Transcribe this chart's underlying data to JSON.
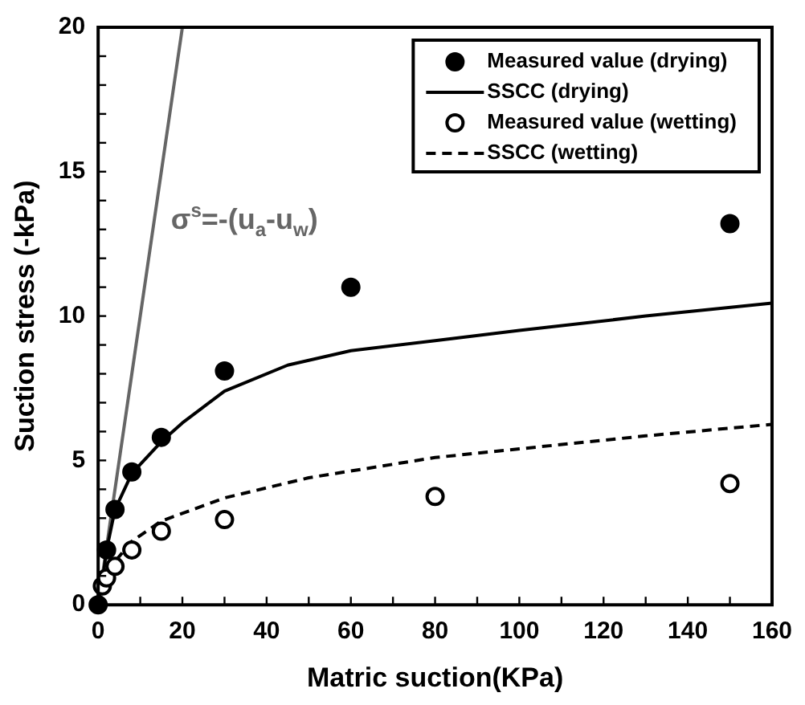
{
  "chart_data": {
    "type": "scatter",
    "xlabel": "Matric suction(KPa)",
    "ylabel": "Suction stress (-kPa)",
    "xlim": [
      0,
      160
    ],
    "ylim": [
      0,
      20
    ],
    "xticks": [
      0,
      {
        "value": 10,
        "label": null
      },
      20,
      {
        "value": 30,
        "label": null
      },
      40,
      {
        "value": 50,
        "label": null
      },
      60,
      {
        "value": 70,
        "label": null
      },
      80,
      {
        "value": 90,
        "label": null
      },
      100,
      {
        "value": 110,
        "label": null
      },
      120,
      {
        "value": 130,
        "label": null
      },
      140,
      {
        "value": 150,
        "label": null
      },
      160
    ],
    "yticks": [
      0,
      {
        "value": 1,
        "label": null
      },
      {
        "value": 2,
        "label": null
      },
      {
        "value": 3,
        "label": null
      },
      {
        "value": 4,
        "label": null
      },
      5,
      {
        "value": 6,
        "label": null
      },
      {
        "value": 7,
        "label": null
      },
      {
        "value": 8,
        "label": null
      },
      {
        "value": 9,
        "label": null
      },
      10,
      {
        "value": 11,
        "label": null
      },
      {
        "value": 12,
        "label": null
      },
      {
        "value": 13,
        "label": null
      },
      {
        "value": 14,
        "label": null
      },
      15,
      {
        "value": 16,
        "label": null
      },
      {
        "value": 17,
        "label": null
      },
      {
        "value": 18,
        "label": null
      },
      {
        "value": 19,
        "label": null
      },
      20
    ],
    "grid": false,
    "legend": "top right",
    "series": [
      {
        "name": "Measured value (drying)",
        "type": "scatter",
        "color": "#000000",
        "marker": "circle",
        "x": [
          0,
          2,
          4,
          8,
          15,
          30,
          60,
          150
        ],
        "values": [
          0,
          1.9,
          3.3,
          4.6,
          5.8,
          8.1,
          11.0,
          13.2
        ]
      },
      {
        "name": "SSCC (drying)",
        "type": "line",
        "color": "#000000",
        "marker": "none",
        "line_style": "solid",
        "x": [
          0,
          1,
          2,
          4,
          8,
          15,
          20,
          30,
          45,
          60,
          80,
          100,
          130,
          160
        ],
        "values": [
          0,
          0.8,
          1.9,
          3.3,
          4.55,
          5.65,
          6.3,
          7.4,
          8.3,
          8.8,
          9.15,
          9.5,
          10.0,
          10.45
        ]
      },
      {
        "name": "Measured value (wetting)",
        "type": "scatter",
        "color": "#000000",
        "marker": "circle",
        "x": [
          1,
          2,
          4,
          8,
          15,
          30,
          80,
          150
        ],
        "values": [
          0.65,
          0.93,
          1.33,
          1.9,
          2.55,
          2.95,
          3.75,
          4.2
        ]
      },
      {
        "name": "SSCC (wetting)",
        "type": "line",
        "color": "#000000",
        "marker": "none",
        "line_style": "dashed",
        "x": [
          0,
          2,
          4,
          8,
          15,
          30,
          50,
          80,
          100,
          130,
          160
        ],
        "values": [
          0,
          0.9,
          1.5,
          2.2,
          2.9,
          3.7,
          4.4,
          5.1,
          5.4,
          5.85,
          6.25
        ]
      },
      {
        "type": "line",
        "color": "#666666",
        "marker": "none",
        "line_style": "solid",
        "x": [
          0,
          20
        ],
        "values": [
          0,
          20
        ]
      }
    ],
    "annotations": [
      "σ$^{s}$=-(u$_{a}$-u$_{w}$)"
    ]
  }
}
